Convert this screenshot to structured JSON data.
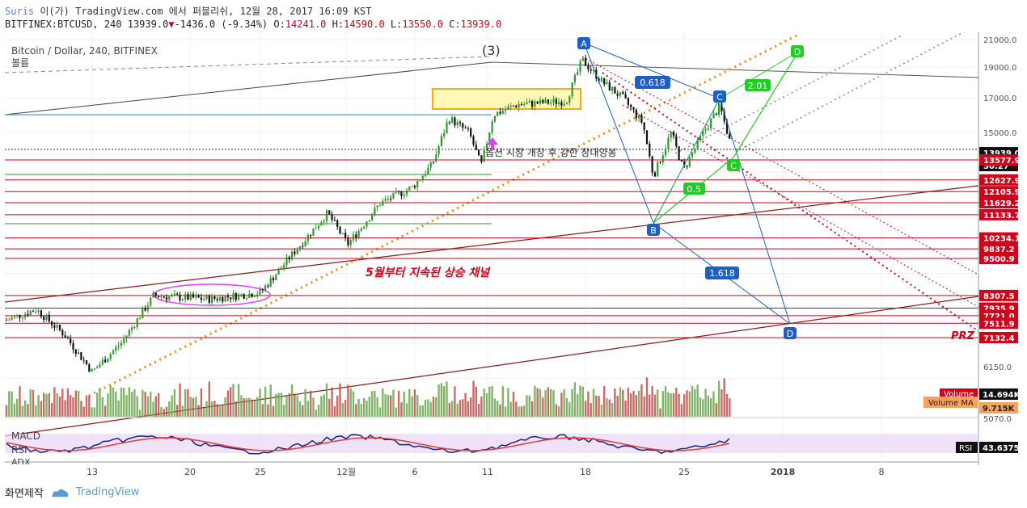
{
  "header": {
    "line1_brand": "Suris",
    "line1_rest": " 이(가) TradingView.com 에서 퍼블리쉬, 12월 28, 2017 16:09 KST",
    "symbol": "BITFINEX:BTCUSD, 240",
    "last": "13939.0",
    "down_arrow": "▼",
    "change": "-1436.0 (-9.34%)",
    "o_label": "O:",
    "o": "14241.0",
    "h_label": "H:",
    "h": "14590.0",
    "l_label": "L:",
    "l": "13550.0",
    "c_label": "C:",
    "c": "13939.0"
  },
  "legend": {
    "title": "Bitcoin / Dollar, 240, BITFINEX",
    "volume_label": "볼륨",
    "wave_label": "(3)"
  },
  "annotations": {
    "uptrend_channel": "5월부터 지속된 상승 채널",
    "futures_note": "옵션 시장 개장 후 강한 장대양봉",
    "prz": "PRZ"
  },
  "pattern": {
    "points": [
      "A",
      "B",
      "C",
      "D"
    ],
    "fibs": [
      "0.618",
      "1.618",
      "0.5",
      "2.01"
    ],
    "green_points": [
      "C",
      "D"
    ]
  },
  "colors": {
    "up_candle": "#2e9a2e",
    "down_candle": "#111111",
    "resistance": "#d0021b",
    "fib_blue": "#1e5fbf",
    "fib_green": "#22cc22",
    "orange_dotted": "#f5861f",
    "highlight_box": "#fff59d"
  },
  "price_axis": {
    "ticks": [
      "21000.0",
      "19000.0",
      "17000.0",
      "15000.0",
      "6150.0",
      "5070.0"
    ],
    "tags": [
      {
        "label": "13939.0",
        "type": "current"
      },
      {
        "label": "50:27",
        "type": "timer"
      },
      {
        "label": "13577.9",
        "type": "level"
      },
      {
        "label": "12627.9",
        "type": "level"
      },
      {
        "label": "12105.9",
        "type": "level"
      },
      {
        "label": "11629.2",
        "type": "level"
      },
      {
        "label": "11133.7",
        "type": "level"
      },
      {
        "label": "10234.1",
        "type": "level"
      },
      {
        "label": "9837.2",
        "type": "level"
      },
      {
        "label": "9500.9",
        "type": "level"
      },
      {
        "label": "8307.5",
        "type": "level"
      },
      {
        "label": "7935.9",
        "type": "level"
      },
      {
        "label": "7721.0",
        "type": "level"
      },
      {
        "label": "7511.9",
        "type": "level"
      },
      {
        "label": "7132.4",
        "type": "level"
      }
    ],
    "volume_tag": "Volume",
    "volume_value": "14.694K",
    "volume_ma_tag": "Volume MA",
    "volume_ma_value": "9.715K",
    "rsi_tag": "RSI",
    "rsi_value": "43.6375"
  },
  "indicators": {
    "macd_label": "MACD",
    "rsi_label": "RSI",
    "adx_label": "ADX"
  },
  "time_axis": {
    "labels": [
      "13",
      "20",
      "25",
      "12월",
      "6",
      "11",
      "18",
      "25",
      "2018",
      "8"
    ]
  },
  "chart_data": {
    "type": "candlestick",
    "title": "Bitcoin / Dollar, 240, BITFINEX",
    "symbol": "BITFINEX:BTCUSD",
    "interval": "240",
    "y_scale": "log",
    "last_bar": {
      "o": 14241.0,
      "h": 14590.0,
      "l": 13550.0,
      "c": 13939.0,
      "change": -1436.0,
      "change_pct": -9.34
    },
    "current_price": 13939.0,
    "horizontal_levels": [
      13577.9,
      12627.9,
      12105.9,
      11629.2,
      11133.7,
      10234.1,
      9837.2,
      9500.9,
      8307.5,
      7935.9,
      7721.0,
      7511.9,
      7132.4
    ],
    "price_ticks": [
      21000,
      19000,
      17000,
      15000
    ],
    "harmonic_pattern": {
      "A": 19800,
      "B": 11000,
      "C": 16500,
      "D": 7400,
      "ratios": {
        "AB_to_BC": 0.618,
        "BC_to_CD": 1.618
      }
    },
    "volume": 14694,
    "volume_ma": 9715,
    "rsi": 43.6375
  }
}
